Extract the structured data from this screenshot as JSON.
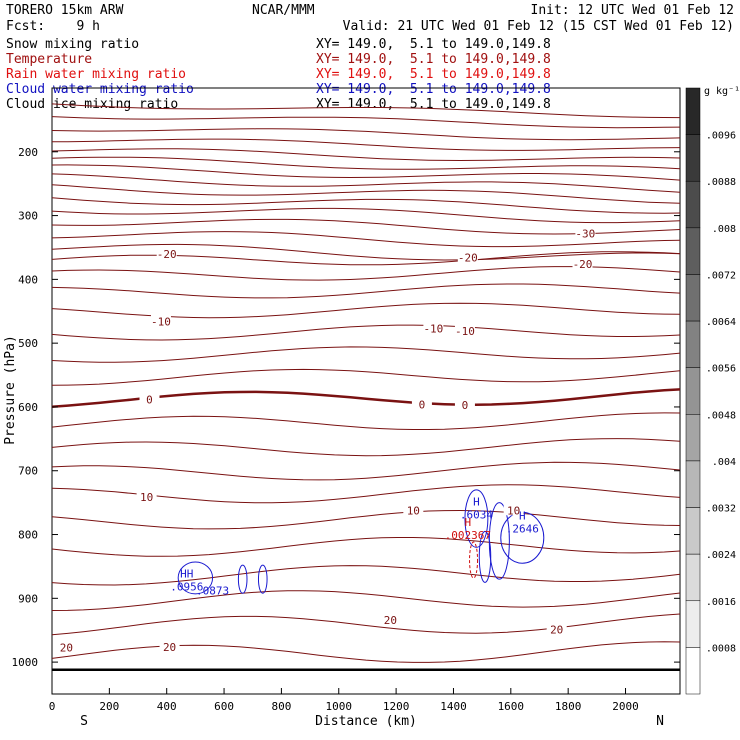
{
  "header": {
    "model": "TORERO  15km ARW",
    "forecast": "Fcst:    9 h",
    "center": "NCAR/MMM",
    "init": "Init: 12 UTC Wed 01 Feb 12",
    "valid": "Valid: 21 UTC Wed 01 Feb 12 (15 CST Wed 01 Feb 12)"
  },
  "fields": [
    {
      "name": "Snow mixing ratio",
      "color": "#000000",
      "xy": "XY= 149.0,  5.1 to 149.0,149.8"
    },
    {
      "name": "Temperature",
      "color": "#a01010",
      "xy": "XY= 149.0,  5.1 to 149.0,149.8"
    },
    {
      "name": "Rain water mixing ratio",
      "color": "#e01010",
      "xy": "XY= 149.0,  5.1 to 149.0,149.8"
    },
    {
      "name": "Cloud water mixing ratio",
      "color": "#1010c0",
      "xy": "XY= 149.0,  5.1 to 149.0,149.8"
    },
    {
      "name": "Cloud ice mixing ratio",
      "color": "#000000",
      "xy": "XY= 149.0,  5.1 to 149.0,149.8"
    }
  ],
  "colors": {
    "temperature": "#7a1212",
    "cloud_water": "#1a1ad0",
    "rain_water": "#d01010",
    "ground": "#000000"
  },
  "chart_data": {
    "type": "contour",
    "xlabel": "Distance (km)",
    "ylabel": "Pressure (hPa)",
    "x_ticks": [
      0,
      200,
      400,
      600,
      800,
      1000,
      1200,
      1400,
      1600,
      1800,
      2000
    ],
    "y_ticks": [
      200,
      300,
      400,
      500,
      600,
      700,
      800,
      900,
      1000
    ],
    "xlim": [
      0,
      2190
    ],
    "ylim": [
      100,
      1050
    ],
    "y_direction": "pressure increases downward",
    "x_end_labels": {
      "left": "S",
      "right": "N"
    },
    "colorbar": {
      "unit": "g kg⁻¹",
      "tick_labels": [
        ".0096",
        ".0088",
        ".008",
        ".0072",
        ".0064",
        ".0056",
        ".0048",
        ".004",
        ".0032",
        ".0024",
        ".0016",
        ".0008"
      ]
    },
    "temperature_contour_labels": [
      {
        "text": "-30",
        "x": 1860,
        "p": 328
      },
      {
        "text": "-20",
        "x": 400,
        "p": 360
      },
      {
        "text": "-20",
        "x": 1450,
        "p": 366
      },
      {
        "text": "-20",
        "x": 1850,
        "p": 376
      },
      {
        "text": "-10",
        "x": 380,
        "p": 466
      },
      {
        "text": "-10",
        "x": 1330,
        "p": 477
      },
      {
        "text": "-10",
        "x": 1440,
        "p": 481
      },
      {
        "text": "0",
        "x": 340,
        "p": 588
      },
      {
        "text": "0",
        "x": 1290,
        "p": 596
      },
      {
        "text": "0",
        "x": 1440,
        "p": 597
      },
      {
        "text": "10",
        "x": 330,
        "p": 741
      },
      {
        "text": "10",
        "x": 1260,
        "p": 762
      },
      {
        "text": "10",
        "x": 1610,
        "p": 762
      },
      {
        "text": "20",
        "x": 1180,
        "p": 934
      },
      {
        "text": "20",
        "x": 1760,
        "p": 949
      },
      {
        "text": "20",
        "x": 410,
        "p": 976
      },
      {
        "text": "20",
        "x": 50,
        "p": 977
      }
    ],
    "maxima_labels": [
      {
        "mark": "H",
        "value": ".6034",
        "x": 1480,
        "p": 772,
        "field": "cloud_water"
      },
      {
        "mark": "H",
        "value": ".2646",
        "x": 1640,
        "p": 794,
        "field": "cloud_water"
      },
      {
        "mark": "H",
        "value": ".002367",
        "x": 1450,
        "p": 804,
        "field": "rain_water"
      },
      {
        "mark": "HH",
        "value": ".0956",
        "x": 470,
        "p": 885,
        "field": "cloud_water"
      },
      {
        "mark": "",
        "value": ".0873",
        "x": 560,
        "p": 891,
        "field": "cloud_water"
      }
    ]
  }
}
